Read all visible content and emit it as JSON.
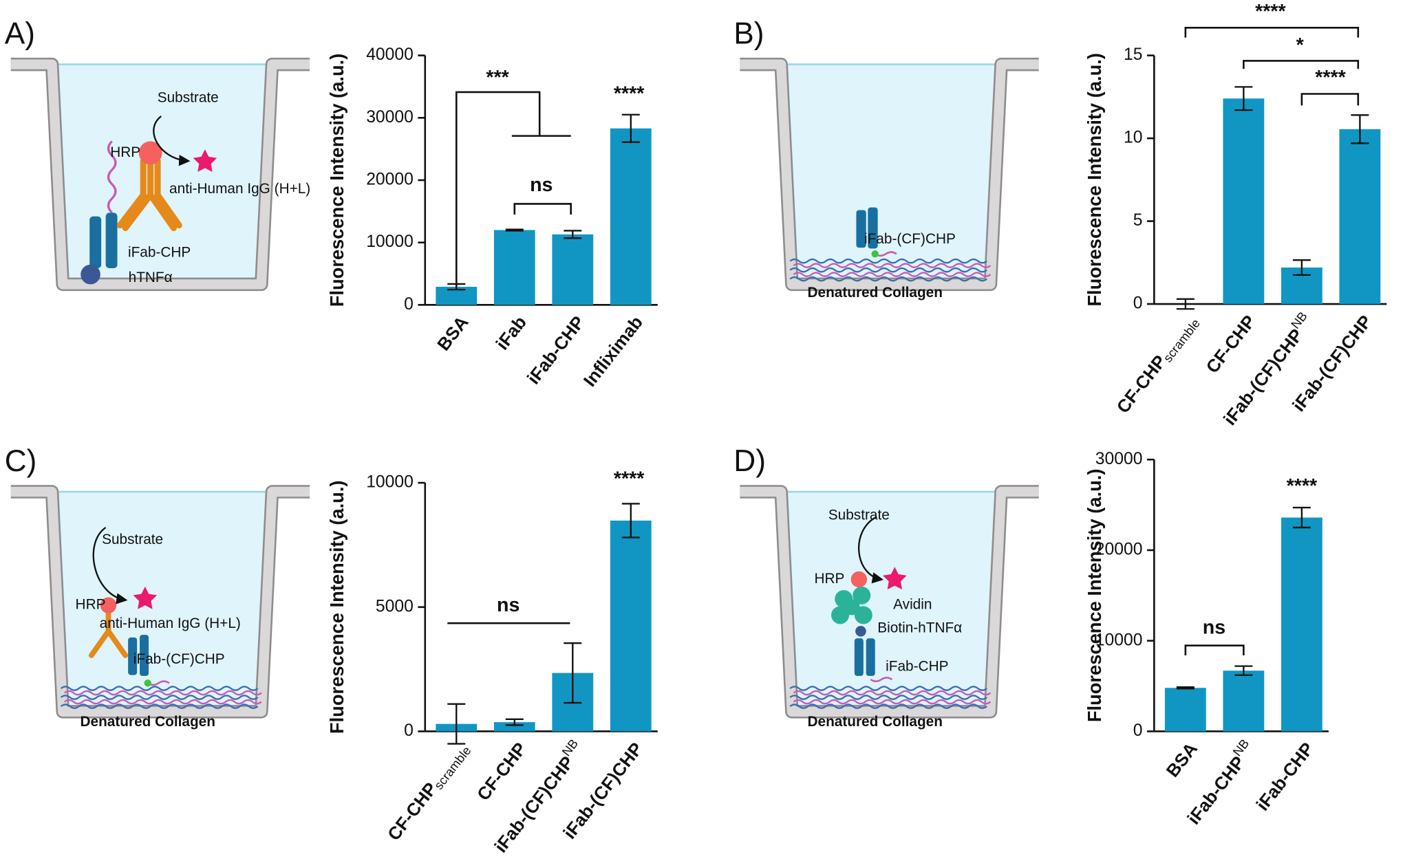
{
  "chart_data": [
    {
      "type": "bar",
      "panel": "A)",
      "diagram_labels": [
        "Substrate",
        "HRP",
        "anti-Human IgG (H+L)",
        "iFab-CHP",
        "hTNFα"
      ],
      "ylabel": "Fluorescence Intensity  (a.u.)",
      "categories": [
        "BSA",
        "iFab",
        "iFab-CHP",
        "Infliximab"
      ],
      "values": [
        2900,
        12000,
        11300,
        28300
      ],
      "errors": [
        450,
        100,
        600,
        2200
      ],
      "color": "#1196c3",
      "ylim": [
        0,
        40000
      ],
      "yticks": [
        0,
        10000,
        20000,
        30000,
        40000
      ],
      "annotations": [
        "***",
        "ns",
        "****"
      ]
    },
    {
      "type": "bar",
      "panel": "B)",
      "diagram_labels": [
        "iFab-(CF)CHP",
        "Denatured Collagen"
      ],
      "ylabel": "Fluorescence Intensity  (a.u.)",
      "categories": [
        "CF-CHP",
        "CF-CHP",
        "iFab-(CF)CHP",
        "iFab-(CF)CHP"
      ],
      "category_subscripts": [
        "scramble",
        null,
        null,
        null
      ],
      "category_superscripts": [
        null,
        null,
        "NB",
        null
      ],
      "values": [
        0,
        12.4,
        2.2,
        10.55
      ],
      "errors": [
        0.3,
        0.7,
        0.45,
        0.85
      ],
      "color": "#1196c3",
      "ylim": [
        0,
        15
      ],
      "yticks": [
        0,
        5,
        10,
        15
      ],
      "annotations": [
        "****",
        "*",
        "****"
      ]
    },
    {
      "type": "bar",
      "panel": "C)",
      "diagram_labels": [
        "Substrate",
        "HRP",
        "anti-Human IgG (H+L)",
        "iFab-(CF)CHP",
        "Denatured Collagen"
      ],
      "ylabel": "Fluorescence Intensity  (a.u.)",
      "categories": [
        "CF-CHP",
        "CF-CHP",
        "iFab-(CF)CHP",
        "iFab-(CF)CHP"
      ],
      "category_subscripts": [
        "scramble",
        null,
        null,
        null
      ],
      "category_superscripts": [
        null,
        null,
        "NB",
        null
      ],
      "values": [
        300,
        370,
        2350,
        8480
      ],
      "errors": [
        800,
        120,
        1200,
        680
      ],
      "color": "#1196c3",
      "ylim": [
        0,
        10000
      ],
      "yticks": [
        0,
        5000,
        10000
      ],
      "annotations": [
        "ns",
        "****"
      ]
    },
    {
      "type": "bar",
      "panel": "D)",
      "diagram_labels": [
        "Substrate",
        "HRP",
        "Avidin",
        "Biotin-hTNFα",
        "iFab-CHP",
        "Denatured Collagen"
      ],
      "ylabel": "Fluorescence Intensity  (a.u.)",
      "categories": [
        "BSA",
        "iFab-CHP",
        "iFab-CHP"
      ],
      "category_superscripts": [
        null,
        "NB",
        null
      ],
      "values": [
        4800,
        6700,
        23600
      ],
      "errors": [
        80,
        500,
        1100
      ],
      "color": "#1196c3",
      "ylim": [
        0,
        30000
      ],
      "yticks": [
        0,
        10000,
        20000,
        30000
      ],
      "annotations": [
        "ns",
        "****"
      ]
    }
  ]
}
